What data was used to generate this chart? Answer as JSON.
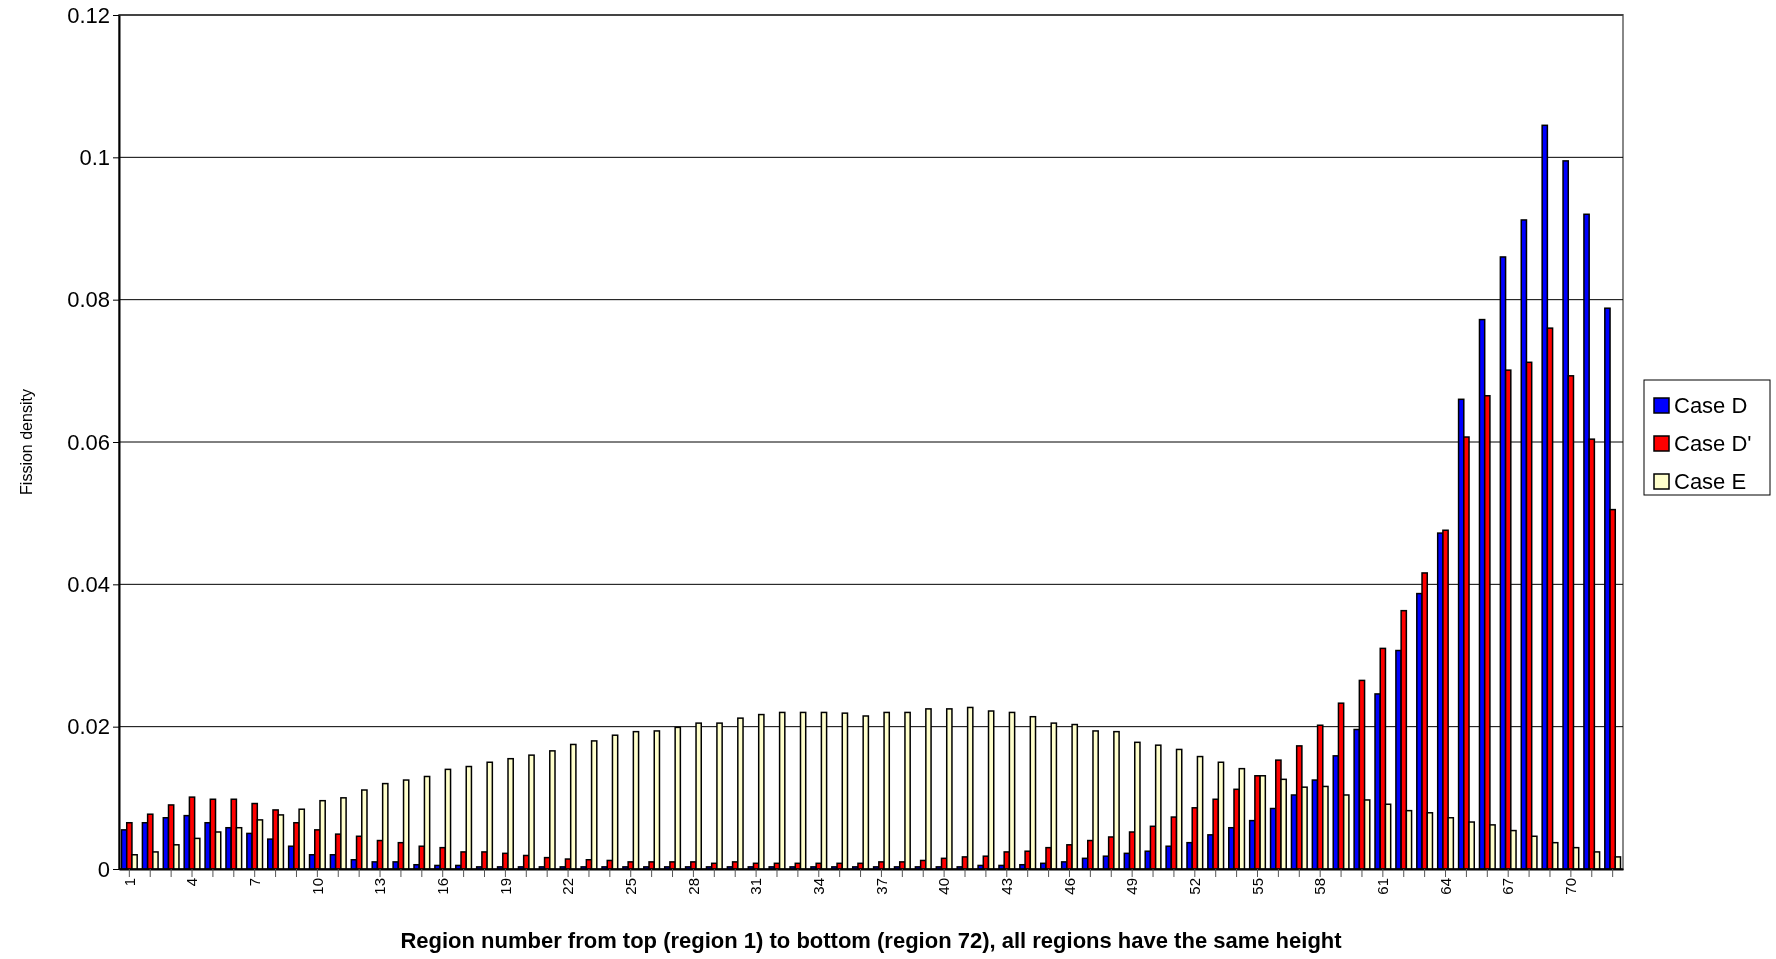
{
  "chart_data": {
    "type": "bar",
    "xlabel": "Region number from top (region 1) to bottom (region 72), all regions have the same height",
    "ylabel": "Fission density",
    "categories": [
      "1",
      null,
      null,
      "4",
      null,
      null,
      "7",
      null,
      null,
      "10",
      null,
      null,
      "13",
      null,
      null,
      "16",
      null,
      null,
      "19",
      null,
      null,
      "22",
      null,
      null,
      "25",
      null,
      null,
      "28",
      null,
      null,
      "31",
      null,
      null,
      "34",
      null,
      null,
      "37",
      null,
      null,
      "40",
      null,
      null,
      "43",
      null,
      null,
      "46",
      null,
      null,
      "49",
      null,
      null,
      "52",
      null,
      null,
      "55",
      null,
      null,
      "58",
      null,
      null,
      "61",
      null,
      null,
      "64",
      null,
      null,
      "67",
      null,
      null,
      "70",
      null,
      null
    ],
    "series": [
      {
        "name": "Case D",
        "color": "#0000ff",
        "values": [
          0.0055,
          0.0065,
          0.0072,
          0.0075,
          0.0065,
          0.0058,
          0.005,
          0.0042,
          0.0032,
          0.002,
          0.002,
          0.0013,
          0.001,
          0.001,
          0.0006,
          0.0005,
          0.0005,
          0.0003,
          0.0003,
          0.0003,
          0.0003,
          0.0003,
          0.0003,
          0.0003,
          0.0003,
          0.0003,
          0.0003,
          0.0003,
          0.0003,
          0.0003,
          0.0003,
          0.0003,
          0.0003,
          0.0003,
          0.0003,
          0.0003,
          0.0003,
          0.0003,
          0.0003,
          0.0003,
          0.0003,
          0.0005,
          0.0005,
          0.0006,
          0.0008,
          0.001,
          0.0015,
          0.0018,
          0.0022,
          0.0025,
          0.0032,
          0.0037,
          0.0048,
          0.0058,
          0.0068,
          0.0085,
          0.0104,
          0.0125,
          0.0159,
          0.0196,
          0.0246,
          0.0307,
          0.0387,
          0.0472,
          0.066,
          0.0772,
          0.086,
          0.0912,
          0.1045,
          0.0995,
          0.092,
          0.0788
        ]
      },
      {
        "name": "Case D'",
        "color": "#ff0000",
        "values": [
          0.0065,
          0.0077,
          0.009,
          0.0101,
          0.0098,
          0.0098,
          0.0092,
          0.0083,
          0.0065,
          0.0055,
          0.0049,
          0.0046,
          0.004,
          0.0037,
          0.0032,
          0.003,
          0.0024,
          0.0024,
          0.0022,
          0.0019,
          0.0016,
          0.0014,
          0.0013,
          0.0012,
          0.001,
          0.001,
          0.001,
          0.001,
          0.0008,
          0.001,
          0.0008,
          0.0008,
          0.0008,
          0.0008,
          0.0008,
          0.0008,
          0.001,
          0.001,
          0.0012,
          0.0015,
          0.0017,
          0.0018,
          0.0024,
          0.0025,
          0.003,
          0.0034,
          0.004,
          0.0045,
          0.0052,
          0.006,
          0.0073,
          0.0086,
          0.0098,
          0.0112,
          0.0131,
          0.0153,
          0.0173,
          0.0202,
          0.0233,
          0.0265,
          0.031,
          0.0363,
          0.0416,
          0.0476,
          0.0607,
          0.0665,
          0.0701,
          0.0712,
          0.076,
          0.0693,
          0.0604,
          0.0505
        ]
      },
      {
        "name": "Case E",
        "color": "#ffffcc",
        "values": [
          0.002,
          0.0024,
          0.0034,
          0.0043,
          0.0052,
          0.0058,
          0.0069,
          0.0076,
          0.0084,
          0.0096,
          0.01,
          0.0111,
          0.012,
          0.0125,
          0.013,
          0.014,
          0.0144,
          0.015,
          0.0155,
          0.016,
          0.0166,
          0.0175,
          0.018,
          0.0188,
          0.0193,
          0.0194,
          0.0199,
          0.0205,
          0.0205,
          0.0212,
          0.0217,
          0.022,
          0.022,
          0.022,
          0.0219,
          0.0215,
          0.022,
          0.022,
          0.0225,
          0.0225,
          0.0227,
          0.0222,
          0.022,
          0.0214,
          0.0205,
          0.0203,
          0.0194,
          0.0193,
          0.0178,
          0.0174,
          0.0168,
          0.0158,
          0.015,
          0.0141,
          0.0131,
          0.0126,
          0.0115,
          0.0116,
          0.0104,
          0.0097,
          0.0091,
          0.0082,
          0.0079,
          0.0072,
          0.0066,
          0.0062,
          0.0054,
          0.0046,
          0.0037,
          0.003,
          0.0024,
          0.0017
        ]
      }
    ],
    "ylim": [
      0,
      0.12
    ],
    "yticks": [
      0,
      0.02,
      0.04,
      0.06,
      0.08,
      0.1,
      0.12
    ],
    "grid": "y",
    "legend": "right"
  }
}
